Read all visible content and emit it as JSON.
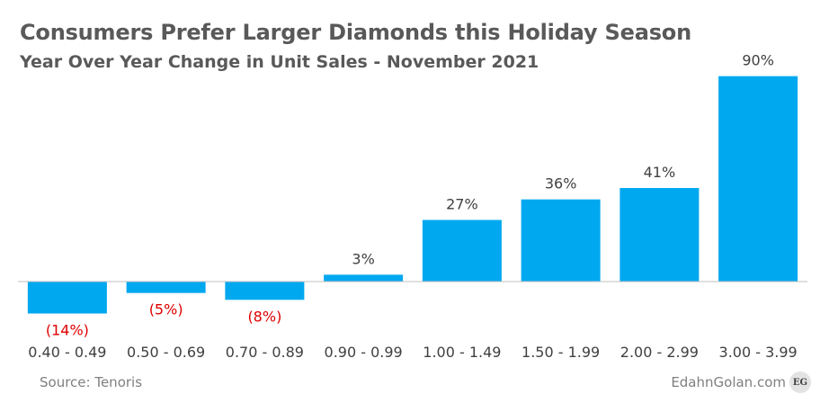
{
  "header": {
    "title": "Consumers Prefer Larger Diamonds this Holiday Season",
    "subtitle": "Year Over Year Change in Unit Sales - November 2021"
  },
  "footer": {
    "source": "Source: Tenoris",
    "credit": "EdahnGolan.com",
    "badge": "EG"
  },
  "colors": {
    "bar": "#00a8f0",
    "axis": "#bfbfbf",
    "positive_label": "#404040",
    "negative_label": "#e00000",
    "tick_label": "#404040"
  },
  "chart_data": {
    "type": "bar",
    "title": "Consumers Prefer Larger Diamonds this Holiday Season",
    "subtitle": "Year Over Year Change in Unit Sales - November 2021",
    "categories": [
      "0.40 - 0.49",
      "0.50 - 0.69",
      "0.70 - 0.89",
      "0.90 - 0.99",
      "1.00 - 1.49",
      "1.50 - 1.99",
      "2.00 - 2.99",
      "3.00 - 3.99"
    ],
    "values": [
      -14,
      -5,
      -8,
      3,
      27,
      36,
      41,
      90
    ],
    "data_labels": [
      "(14%)",
      "(5%)",
      "(8%)",
      "3%",
      "27%",
      "36%",
      "41%",
      "90%"
    ],
    "xlabel": "",
    "ylabel": "",
    "grid": false,
    "legend": "none"
  }
}
